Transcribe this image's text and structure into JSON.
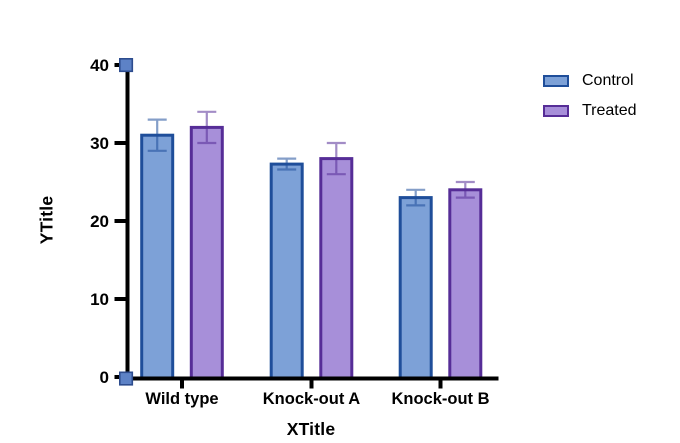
{
  "chart_data": {
    "type": "bar",
    "title": "",
    "xlabel": "XTitle",
    "ylabel": "YTitle",
    "categories": [
      "Wild type",
      "Knock-out A",
      "Knock-out B"
    ],
    "series": [
      {
        "name": "Control",
        "values": [
          31,
          27.3,
          23
        ],
        "errors": [
          2,
          0.7,
          1
        ],
        "fill": "#7da1d7",
        "border": "#1f4e9a"
      },
      {
        "name": "Treated",
        "values": [
          32,
          28,
          24
        ],
        "errors": [
          2,
          2,
          1
        ],
        "fill": "#a78fd9",
        "border": "#562d97"
      }
    ],
    "ylim": [
      0,
      40
    ],
    "yticks": [
      0,
      10,
      20,
      30,
      40
    ],
    "grid": false,
    "legend_position": "top-right",
    "error_bars": "symmetric, caps at both ends",
    "axis_color": "#000000",
    "text_color": "#000000",
    "selection_handles": {
      "positions": [
        "y-axis-top",
        "origin"
      ],
      "fill": "#5d82c6",
      "border": "#2d4c8e"
    }
  }
}
